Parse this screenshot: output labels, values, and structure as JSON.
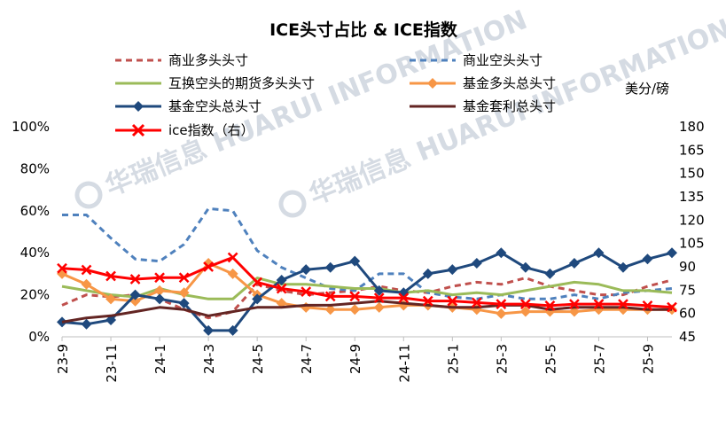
{
  "chart_data": {
    "type": "line",
    "title": "ICE头寸占比 & ICE指数",
    "right_axis_unit": "美分/磅",
    "left_ticks": [
      "0%",
      "20%",
      "40%",
      "60%",
      "80%",
      "100%"
    ],
    "right_ticks": [
      "45",
      "60",
      "75",
      "90",
      "105",
      "120",
      "135",
      "150",
      "165",
      "180"
    ],
    "x_tick_labels": [
      "23-9",
      "23-11",
      "24-1",
      "24-3",
      "24-5",
      "24-7",
      "24-9",
      "24-11",
      "25-1",
      "25-3",
      "25-5",
      "25-7",
      "25-9"
    ],
    "ylim_left": [
      0,
      1
    ],
    "ylim_right": [
      45,
      180
    ],
    "x": [
      "2023-09",
      "2023-10",
      "2023-11",
      "2023-12",
      "2024-01",
      "2024-02",
      "2024-03",
      "2024-04",
      "2024-05",
      "2024-06",
      "2024-07",
      "2024-08",
      "2024-09",
      "2024-10",
      "2024-11",
      "2024-12",
      "2025-01",
      "2025-02",
      "2025-03",
      "2025-04",
      "2025-05",
      "2025-06",
      "2025-07",
      "2025-08",
      "2025-09",
      "2025-10"
    ],
    "legend_position": "top",
    "watermark": "华瑞信息 HUARUI INFORMATION",
    "series": [
      {
        "name": "商业多头头寸",
        "axis": "left",
        "color": "#c0504d",
        "style": "dashed",
        "values": [
          0.15,
          0.2,
          0.19,
          0.2,
          0.18,
          0.13,
          0.09,
          0.12,
          0.25,
          0.22,
          0.2,
          0.21,
          0.22,
          0.24,
          0.22,
          0.21,
          0.24,
          0.26,
          0.25,
          0.28,
          0.24,
          0.22,
          0.2,
          0.2,
          0.24,
          0.27
        ]
      },
      {
        "name": "商业空头头寸",
        "axis": "left",
        "color": "#4f81bd",
        "style": "dashed",
        "values": [
          0.58,
          0.58,
          0.47,
          0.37,
          0.36,
          0.44,
          0.61,
          0.6,
          0.41,
          0.33,
          0.28,
          0.23,
          0.22,
          0.3,
          0.3,
          0.21,
          0.19,
          0.18,
          0.2,
          0.18,
          0.18,
          0.2,
          0.18,
          0.21,
          0.22,
          0.23
        ]
      },
      {
        "name": "互换空头的期货多头头寸",
        "axis": "left",
        "color": "#9bbb59",
        "style": "solid",
        "values": [
          0.24,
          0.22,
          0.2,
          0.19,
          0.23,
          0.2,
          0.18,
          0.18,
          0.28,
          0.25,
          0.25,
          0.24,
          0.23,
          0.23,
          0.21,
          0.22,
          0.2,
          0.21,
          0.2,
          0.22,
          0.24,
          0.26,
          0.25,
          0.22,
          0.22,
          0.21
        ]
      },
      {
        "name": "基金多头总头寸",
        "axis": "left",
        "color": "#f79646",
        "style": "marker",
        "values": [
          0.3,
          0.25,
          0.18,
          0.17,
          0.22,
          0.21,
          0.35,
          0.3,
          0.2,
          0.16,
          0.14,
          0.13,
          0.13,
          0.14,
          0.15,
          0.15,
          0.14,
          0.13,
          0.11,
          0.12,
          0.12,
          0.12,
          0.13,
          0.13,
          0.13,
          0.13
        ]
      },
      {
        "name": "基金空头总头寸",
        "axis": "left",
        "color": "#1f497d",
        "style": "marker",
        "values": [
          0.07,
          0.06,
          0.08,
          0.2,
          0.18,
          0.16,
          0.03,
          0.03,
          0.18,
          0.27,
          0.32,
          0.33,
          0.36,
          0.22,
          0.21,
          0.3,
          0.32,
          0.35,
          0.4,
          0.33,
          0.3,
          0.35,
          0.4,
          0.33,
          0.37,
          0.4
        ]
      },
      {
        "name": "基金套利总头寸",
        "axis": "left",
        "color": "#632523",
        "style": "solid",
        "values": [
          0.07,
          0.09,
          0.1,
          0.12,
          0.14,
          0.13,
          0.1,
          0.12,
          0.14,
          0.14,
          0.15,
          0.15,
          0.16,
          0.17,
          0.16,
          0.15,
          0.14,
          0.14,
          0.15,
          0.15,
          0.13,
          0.14,
          0.14,
          0.14,
          0.13,
          0.13
        ]
      },
      {
        "name": "ice指数（右）",
        "axis": "right",
        "color": "#ff0000",
        "style": "cross",
        "values": [
          89,
          88,
          84,
          82,
          83,
          83,
          90,
          96,
          80,
          76,
          74,
          71,
          71,
          70,
          70,
          68,
          68,
          67,
          66,
          66,
          65,
          66,
          66,
          66,
          65,
          64
        ]
      }
    ]
  }
}
